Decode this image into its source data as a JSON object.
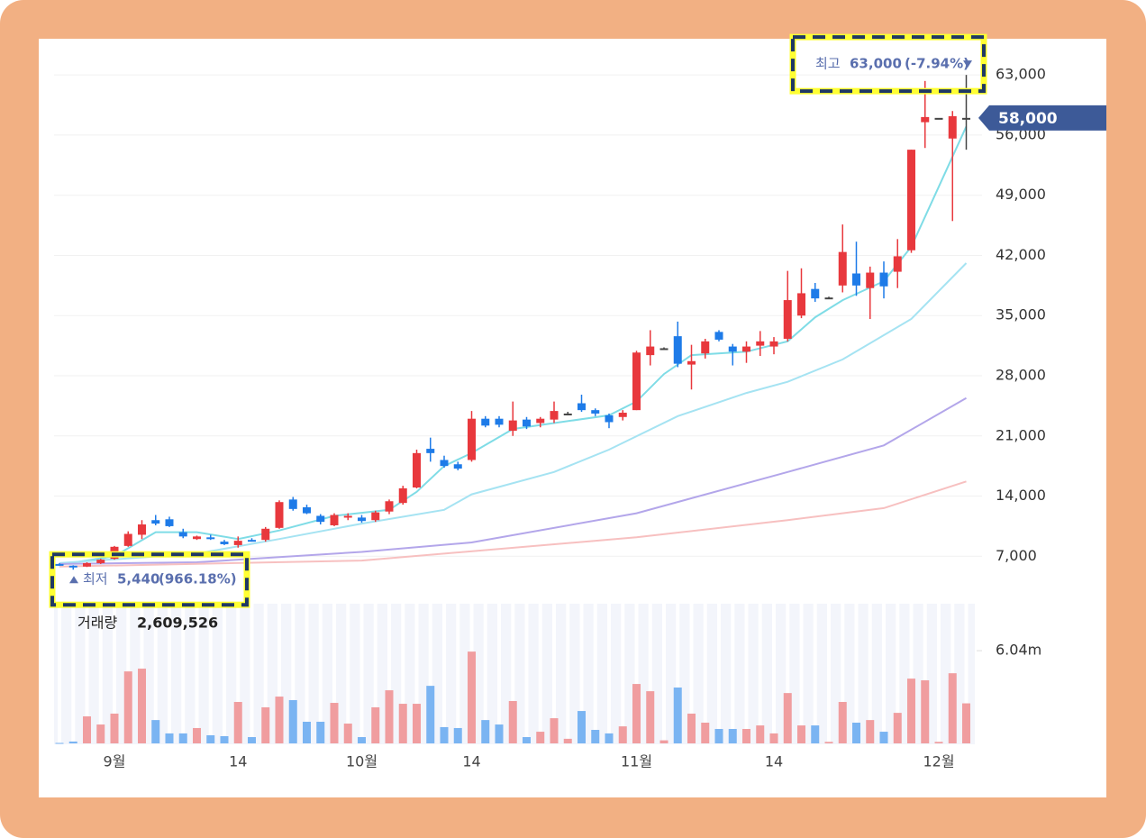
{
  "chart_data": [
    {
      "type": "candlestick",
      "open": [
        6100,
        5900,
        5800,
        6200,
        6700,
        8200,
        9500,
        11200,
        11300,
        9800,
        9000,
        9200,
        8700,
        8300,
        8900,
        8900,
        10300,
        13600,
        12700,
        11700,
        10600,
        11500,
        11500,
        11200,
        12200,
        13200,
        15000,
        19500,
        18200,
        17700,
        18200,
        23000,
        23000,
        21600,
        22900,
        22500,
        22900,
        23600,
        24800,
        24000,
        23400,
        23200,
        24000,
        30400,
        31200,
        32600,
        29300,
        30600,
        33100,
        31400,
        30800,
        31500,
        31400,
        32300,
        35000,
        38100,
        37100,
        38500,
        39900,
        38200,
        40000,
        40100,
        42600,
        57500,
        58000,
        55600,
        58000
      ],
      "high": [
        6200,
        5950,
        6300,
        6700,
        8200,
        9900,
        11200,
        11800,
        11600,
        10200,
        9400,
        9500,
        8900,
        9300,
        9100,
        10400,
        13500,
        13900,
        13000,
        11900,
        12000,
        12000,
        11800,
        12300,
        13600,
        15200,
        19400,
        20800,
        18700,
        18000,
        23900,
        23300,
        23300,
        25000,
        23200,
        23200,
        25000,
        23800,
        25800,
        24200,
        23600,
        24000,
        30900,
        33300,
        31300,
        34300,
        31600,
        32300,
        33300,
        31700,
        32000,
        33200,
        32500,
        40200,
        40500,
        38800,
        37200,
        45600,
        43600,
        40700,
        41300,
        43900,
        54300,
        62300,
        58000,
        58800,
        63000
      ],
      "low": [
        5900,
        5440,
        5750,
        6100,
        6600,
        8100,
        9000,
        10600,
        10400,
        9100,
        8900,
        8900,
        8300,
        8000,
        8700,
        8700,
        10200,
        12300,
        11900,
        10700,
        10500,
        11200,
        10900,
        11000,
        11900,
        13000,
        14900,
        18000,
        17300,
        17000,
        18000,
        22000,
        22000,
        21000,
        21800,
        22000,
        22500,
        23400,
        23800,
        23300,
        21900,
        22800,
        24000,
        29200,
        31100,
        29000,
        26400,
        30000,
        32000,
        29200,
        29500,
        30300,
        30500,
        32000,
        34700,
        36600,
        37000,
        37700,
        37300,
        34600,
        37000,
        38200,
        42300,
        54500,
        58000,
        46000,
        54300
      ],
      "close": [
        6000,
        5700,
        6200,
        6600,
        8100,
        9600,
        10700,
        10800,
        10500,
        9300,
        9300,
        9000,
        8400,
        8800,
        8800,
        10200,
        13300,
        12500,
        12000,
        11000,
        11800,
        11700,
        11100,
        12100,
        13400,
        14900,
        19000,
        19000,
        17500,
        17200,
        23000,
        22200,
        22300,
        22800,
        22100,
        23000,
        23900,
        23600,
        24000,
        23600,
        22600,
        23700,
        30700,
        31400,
        31200,
        29400,
        29700,
        32000,
        32200,
        30800,
        31400,
        32000,
        32000,
        36800,
        37600,
        37000,
        37100,
        42400,
        38500,
        40000,
        38400,
        41900,
        54300,
        58100,
        58000,
        58200,
        58000
      ],
      "up_color": "#e8383d",
      "down_color": "#1e7be8",
      "ylim": [
        2000,
        67000
      ],
      "yticks": [
        {
          "value": 7000,
          "label": "7,000"
        },
        {
          "value": 14000,
          "label": "14,000"
        },
        {
          "value": 21000,
          "label": "21,000"
        },
        {
          "value": 28000,
          "label": "28,000"
        },
        {
          "value": 35000,
          "label": "35,000"
        },
        {
          "value": 42000,
          "label": "42,000"
        },
        {
          "value": 49000,
          "label": "49,000"
        },
        {
          "value": 56000,
          "label": "56,000"
        },
        {
          "value": 63000,
          "label": "63,000"
        }
      ],
      "grid": true,
      "moving_averages": [
        {
          "color": "#7fdce6",
          "x": [
            0,
            4,
            7,
            10,
            13,
            16,
            20,
            24,
            26,
            28,
            30,
            33,
            36,
            40,
            42,
            44,
            46,
            50,
            53,
            55,
            57,
            60,
            62,
            64,
            66
          ],
          "values": [
            6000,
            7000,
            9800,
            9800,
            9000,
            10000,
            11700,
            12400,
            14500,
            17500,
            19000,
            21800,
            22500,
            23400,
            25000,
            28200,
            30400,
            30800,
            32000,
            34800,
            36800,
            39000,
            43000,
            50000,
            57000
          ]
        },
        {
          "color": "#a5e3f2",
          "x": [
            0,
            10,
            16,
            22,
            28,
            30,
            36,
            40,
            45,
            50,
            53,
            57,
            62,
            66
          ],
          "values": [
            6200,
            7300,
            9000,
            10800,
            12400,
            14200,
            16800,
            19400,
            23300,
            26000,
            27300,
            29900,
            34600,
            41100
          ]
        },
        {
          "color": "#b3a6ea",
          "x": [
            0,
            10,
            22,
            30,
            42,
            53,
            60,
            66
          ],
          "values": [
            6100,
            6300,
            7500,
            8600,
            12000,
            16800,
            19900,
            25400
          ]
        },
        {
          "color": "#f7c0c0",
          "x": [
            0,
            22,
            42,
            53,
            60,
            66
          ],
          "values": [
            5800,
            6500,
            9200,
            11200,
            12600,
            15700
          ]
        }
      ],
      "high_marker": {
        "name": "최고",
        "value": 63000,
        "label": "63,000",
        "change_label": "(-7.94%)"
      },
      "low_marker": {
        "name": "최저",
        "value": 5440,
        "label": "5,440",
        "change_label": "(966.18%)"
      },
      "current": {
        "value": 58000,
        "label": "58,000"
      }
    },
    {
      "type": "bar",
      "title": "거래량",
      "latest_label": "2,609,526",
      "categories": [
        null,
        null,
        null,
        null,
        "9월",
        null,
        null,
        null,
        null,
        null,
        null,
        null,
        null,
        "14",
        null,
        null,
        null,
        null,
        null,
        null,
        null,
        null,
        "10월",
        null,
        null,
        null,
        null,
        null,
        null,
        null,
        "14",
        null,
        null,
        null,
        null,
        null,
        null,
        null,
        null,
        null,
        null,
        null,
        "11월",
        null,
        null,
        null,
        null,
        null,
        null,
        null,
        null,
        null,
        "14",
        null,
        null,
        null,
        null,
        null,
        null,
        null,
        null,
        null,
        null,
        null,
        "12월",
        null,
        null
      ],
      "values": [
        30000,
        120000,
        1760000,
        1230000,
        1940000,
        4690000,
        4870000,
        1520000,
        650000,
        650000,
        1000000,
        530000,
        470000,
        2700000,
        410000,
        2350000,
        3050000,
        2820000,
        1410000,
        1410000,
        2640000,
        1290000,
        410000,
        2350000,
        3460000,
        2580000,
        2580000,
        3750000,
        1060000,
        1000000,
        5980000,
        1520000,
        1230000,
        2760000,
        410000,
        760000,
        1640000,
        300000,
        2110000,
        880000,
        650000,
        1110000,
        3870000,
        3400000,
        200000,
        3640000,
        1940000,
        1350000,
        940000,
        940000,
        940000,
        1170000,
        650000,
        3280000,
        1170000,
        1170000,
        100000,
        2700000,
        1350000,
        1520000,
        760000,
        1990000,
        4220000,
        4110000,
        100000,
        4570000,
        2609526
      ],
      "up_color": "#f09d9f",
      "down_color": "#7ab4f2",
      "ylim": [
        0,
        9100000
      ],
      "yticks": [
        {
          "value": 6040000,
          "label": "6.04m"
        }
      ]
    }
  ]
}
